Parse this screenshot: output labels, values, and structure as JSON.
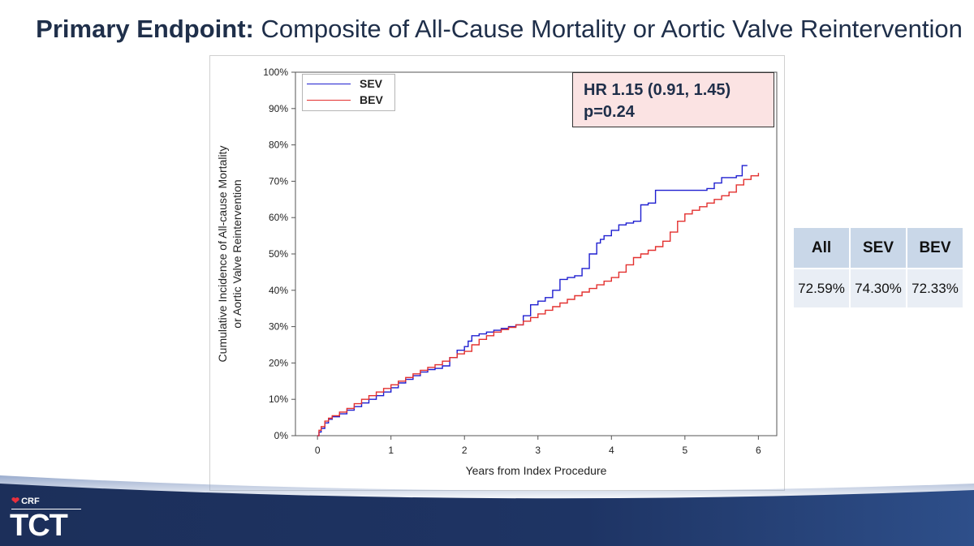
{
  "title": {
    "bold": "Primary Endpoint:",
    "rest": " Composite of All-Cause Mortality or Aortic Valve Reintervention"
  },
  "legend": [
    {
      "name": "SEV",
      "color": "#1f1fd0"
    },
    {
      "name": "BEV",
      "color": "#e3302f"
    }
  ],
  "stats": {
    "hr": "HR 1.15 (0.91, 1.45)",
    "p": "p=0.24"
  },
  "table": {
    "headers": [
      "All",
      "SEV",
      "BEV"
    ],
    "values": [
      "72.59%",
      "74.30%",
      "72.33%"
    ]
  },
  "footer": {
    "crf": "CRF",
    "tct": "TCT"
  },
  "chart_data": {
    "type": "line",
    "step": true,
    "xlabel": "Years from Index Procedure",
    "ylabel_lines": [
      "Cumulative Incidence of All-cause Mortality",
      "or Aortic Valve Reintervention"
    ],
    "xlim": [
      -0.3,
      6.25
    ],
    "ylim": [
      0,
      100
    ],
    "xticks": [
      0,
      1,
      2,
      3,
      4,
      5,
      6
    ],
    "yticks": [
      0,
      10,
      20,
      30,
      40,
      50,
      60,
      70,
      80,
      90,
      100
    ],
    "ytick_labels": [
      "0%",
      "10%",
      "20%",
      "30%",
      "40%",
      "50%",
      "60%",
      "70%",
      "80%",
      "90%",
      "100%"
    ],
    "grid": false,
    "legend_position": "top-left",
    "series": [
      {
        "name": "SEV",
        "color": "#1f1fd0",
        "x": [
          0,
          0.02,
          0.05,
          0.1,
          0.15,
          0.2,
          0.3,
          0.4,
          0.5,
          0.6,
          0.7,
          0.8,
          0.9,
          1.0,
          1.1,
          1.2,
          1.3,
          1.4,
          1.5,
          1.6,
          1.7,
          1.8,
          1.9,
          2.0,
          2.05,
          2.1,
          2.2,
          2.3,
          2.4,
          2.5,
          2.6,
          2.7,
          2.8,
          2.9,
          3.0,
          3.1,
          3.2,
          3.3,
          3.4,
          3.5,
          3.6,
          3.7,
          3.8,
          3.85,
          3.9,
          4.0,
          4.1,
          4.2,
          4.3,
          4.4,
          4.5,
          4.6,
          4.65,
          4.7,
          4.8,
          4.9,
          5.0,
          5.1,
          5.2,
          5.3,
          5.4,
          5.5,
          5.6,
          5.7,
          5.78,
          5.85
        ],
        "y": [
          0,
          1,
          2,
          3.5,
          4.5,
          5.2,
          6,
          7,
          8,
          9,
          10,
          11,
          12,
          13.2,
          14.5,
          15.5,
          16.5,
          17.5,
          18.2,
          18.5,
          19.2,
          21.5,
          23.5,
          24.5,
          26,
          27.5,
          28,
          28.5,
          29,
          29.5,
          30,
          30.5,
          33,
          36,
          37,
          38,
          40,
          43,
          43.5,
          44,
          46,
          50,
          53,
          54,
          55,
          56.5,
          58,
          58.5,
          59,
          63.5,
          64,
          67.5,
          67.5,
          67.5,
          67.5,
          67.5,
          67.5,
          67.5,
          67.5,
          68,
          69.5,
          71,
          71,
          71.5,
          74.3,
          74.3
        ]
      },
      {
        "name": "BEV",
        "color": "#e3302f",
        "x": [
          0,
          0.02,
          0.05,
          0.1,
          0.15,
          0.2,
          0.3,
          0.4,
          0.5,
          0.6,
          0.7,
          0.8,
          0.9,
          1.0,
          1.1,
          1.2,
          1.3,
          1.4,
          1.5,
          1.6,
          1.7,
          1.8,
          1.9,
          2.0,
          2.1,
          2.2,
          2.3,
          2.4,
          2.5,
          2.6,
          2.7,
          2.8,
          2.9,
          3.0,
          3.1,
          3.2,
          3.3,
          3.4,
          3.5,
          3.6,
          3.7,
          3.8,
          3.9,
          4.0,
          4.1,
          4.2,
          4.3,
          4.4,
          4.5,
          4.6,
          4.7,
          4.8,
          4.9,
          5.0,
          5.1,
          5.2,
          5.3,
          5.4,
          5.5,
          5.6,
          5.7,
          5.8,
          5.9,
          6.0
        ],
        "y": [
          0,
          1.5,
          2.5,
          4,
          4.8,
          5.5,
          6.5,
          7.5,
          8.8,
          10,
          11,
          12,
          13,
          14,
          15,
          16,
          17,
          18,
          18.8,
          19.5,
          20.5,
          21.5,
          22.5,
          23.2,
          25,
          26.5,
          27.5,
          28.5,
          29.2,
          29.8,
          30.5,
          31.5,
          32.5,
          33.5,
          34.5,
          35.5,
          36.5,
          37.5,
          38.5,
          39.5,
          40.5,
          41.5,
          42.5,
          43.5,
          45,
          47,
          49,
          50,
          51,
          52,
          53.5,
          56,
          59,
          61,
          62,
          63,
          64,
          65,
          66,
          67,
          69,
          70.5,
          71.5,
          72.3
        ]
      }
    ]
  }
}
